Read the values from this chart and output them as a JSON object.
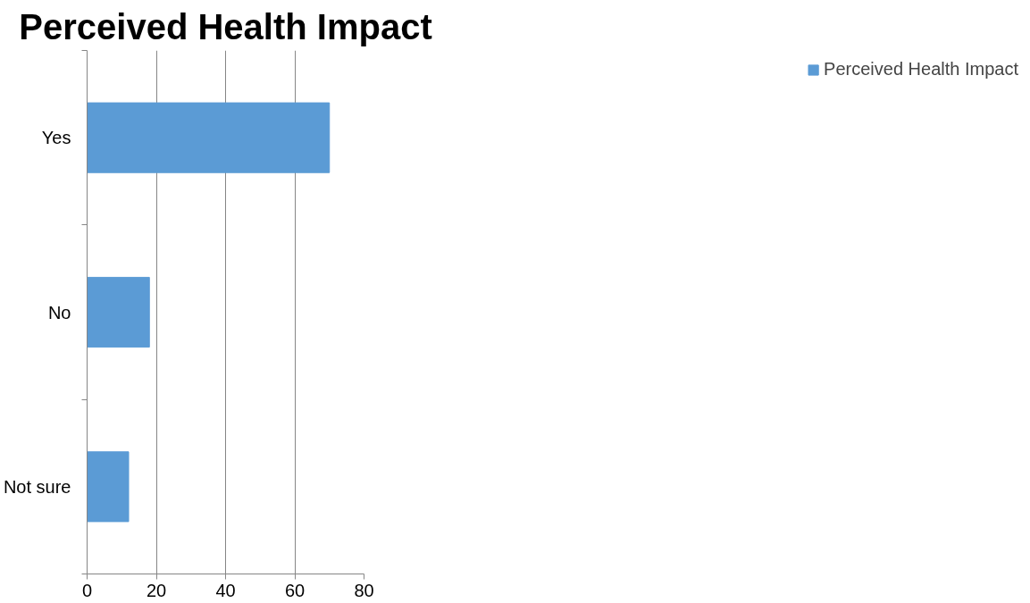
{
  "chart_data": {
    "type": "bar",
    "orientation": "horizontal",
    "title": "Perceived Health Impact",
    "categories": [
      "Yes",
      "No",
      "Not sure"
    ],
    "series": [
      {
        "name": "Perceived Health Impact",
        "color": "#5b9bd5",
        "values": [
          70,
          18,
          12
        ]
      }
    ],
    "xlim": [
      0,
      80
    ],
    "xticks": [
      0,
      20,
      40,
      60,
      80
    ],
    "grid": "x",
    "legend": "right"
  }
}
